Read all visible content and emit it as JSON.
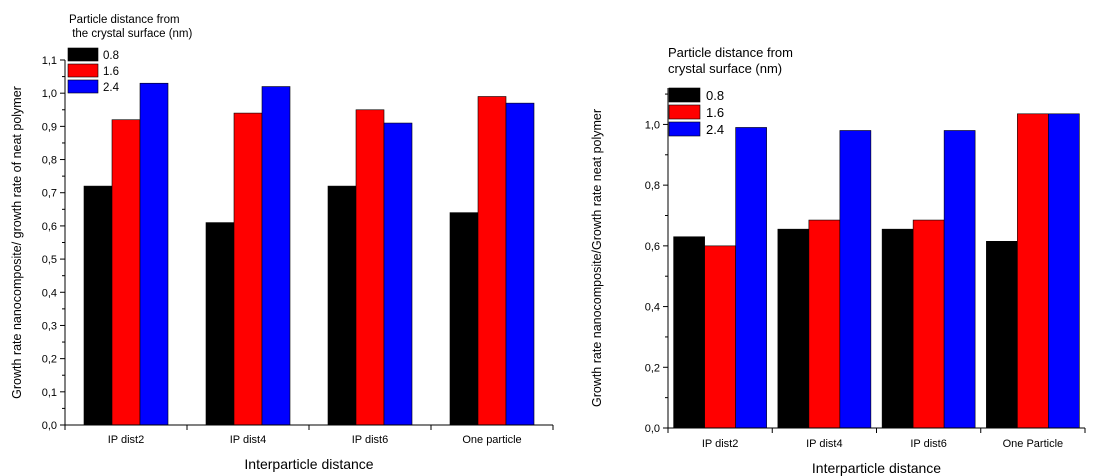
{
  "chart_data": [
    {
      "type": "bar",
      "title": "",
      "xlabel": "Interparticle distance",
      "ylabel": "Growth rate nanocomposite/ growth rate of neat polymer",
      "categories": [
        "IP dist2",
        "IP dist4",
        "IP dist6",
        "One particle"
      ],
      "series": [
        {
          "name": "0.8",
          "color": "#000000",
          "values": [
            0.72,
            0.61,
            0.72,
            0.64
          ]
        },
        {
          "name": "1.6",
          "color": "#ff0000",
          "values": [
            0.92,
            0.94,
            0.95,
            0.99
          ]
        },
        {
          "name": "2.4",
          "color": "#0000ff",
          "values": [
            1.03,
            1.02,
            0.91,
            0.97
          ]
        }
      ],
      "ylim": [
        0,
        1.1
      ],
      "yticks": [
        "0,0",
        "0,1",
        "0,2",
        "0,3",
        "0,4",
        "0,5",
        "0,6",
        "0,7",
        "0,8",
        "0,9",
        "1,0",
        "1,1"
      ],
      "legend_title": "Particle distance from\n the crystal surface (nm)",
      "legend_position": "top-left",
      "grid": false
    },
    {
      "type": "bar",
      "title": "",
      "xlabel": "Interparticle distance",
      "ylabel": "Growth rate nanocomposite/Growth rate neat polymer",
      "categories": [
        "IP dist2",
        "IP dist4",
        "IP dist6",
        "One Particle"
      ],
      "series": [
        {
          "name": "0.8",
          "color": "#000000",
          "values": [
            0.63,
            0.655,
            0.655,
            0.615
          ]
        },
        {
          "name": "1.6",
          "color": "#ff0000",
          "values": [
            0.6,
            0.685,
            0.685,
            1.035
          ]
        },
        {
          "name": "2.4",
          "color": "#0000ff",
          "values": [
            0.99,
            0.98,
            0.98,
            1.035
          ]
        }
      ],
      "ylim": [
        0,
        1.12
      ],
      "yticks": [
        "0,0",
        "0,2",
        "0,4",
        "0,6",
        "0,8",
        "1,0"
      ],
      "legend_title": "Particle distance from\ncrystal surface (nm)",
      "legend_position": "top-left",
      "grid": false
    }
  ]
}
